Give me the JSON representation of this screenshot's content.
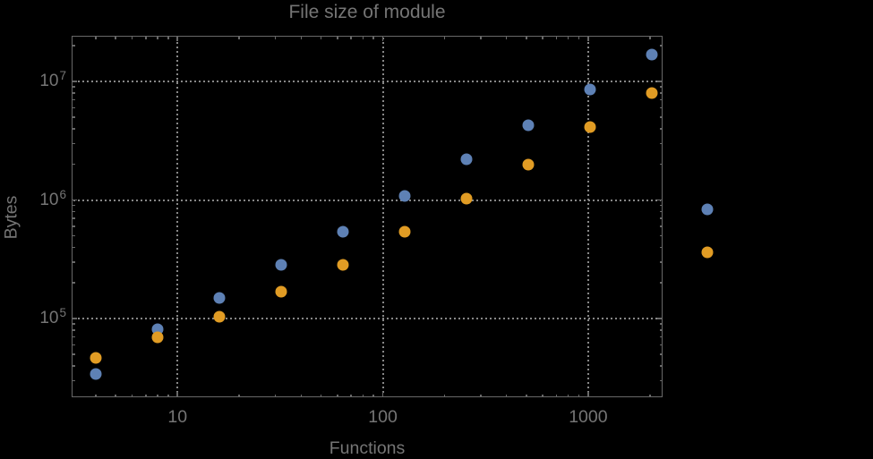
{
  "title": "File size of module",
  "colors": {
    "background": "#000000",
    "frame": "#686868",
    "grid": "#878787",
    "text": "#757575",
    "series_blue": "#5E81B5",
    "series_orange": "#E19C24"
  },
  "chart_data": {
    "type": "scatter",
    "title": "File size of module",
    "xlabel": "Functions",
    "ylabel": "Bytes",
    "x_scale": "log",
    "y_scale": "log",
    "grid": "dotted",
    "legend": "none",
    "x_range": [
      3.05,
      2303
    ],
    "y_range": [
      21700,
      24300000
    ],
    "x_major_ticks": [
      {
        "value": 10,
        "label": "10"
      },
      {
        "value": 100,
        "label": "100"
      },
      {
        "value": 1000,
        "label": "1000"
      }
    ],
    "y_major_ticks": [
      {
        "value": 100000,
        "base": "10",
        "exponent": "5"
      },
      {
        "value": 1000000,
        "base": "10",
        "exponent": "6"
      },
      {
        "value": 10000000,
        "base": "10",
        "exponent": "7"
      }
    ],
    "series": [
      {
        "name": "series-blue",
        "color": "#5E81B5",
        "points": [
          [
            4,
            34000
          ],
          [
            8,
            81000
          ],
          [
            16,
            150000
          ],
          [
            32,
            285000
          ],
          [
            64,
            540000
          ],
          [
            128,
            1080000
          ],
          [
            256,
            2200000
          ],
          [
            512,
            4300000
          ],
          [
            1024,
            8500000
          ],
          [
            2048,
            17000000
          ],
          [
            3800,
            830000
          ]
        ]
      },
      {
        "name": "series-orange",
        "color": "#E19C24",
        "points": [
          [
            4,
            47000
          ],
          [
            8,
            70000
          ],
          [
            16,
            104000
          ],
          [
            32,
            170000
          ],
          [
            64,
            285000
          ],
          [
            128,
            540000
          ],
          [
            256,
            1030000
          ],
          [
            512,
            2000000
          ],
          [
            1024,
            4100000
          ],
          [
            2048,
            8000000
          ],
          [
            3800,
            360000
          ]
        ]
      }
    ]
  }
}
